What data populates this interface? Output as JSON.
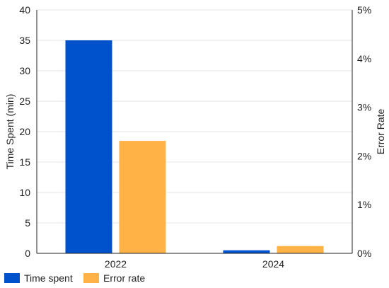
{
  "chart_data": {
    "type": "bar",
    "categories": [
      "2022",
      "2024"
    ],
    "series": [
      {
        "name": "Time spent",
        "axis": "left",
        "values": [
          35,
          0.5
        ],
        "color": "#0052cc"
      },
      {
        "name": "Error rate",
        "axis": "right",
        "values": [
          2.31,
          0.15
        ],
        "color": "#ffb347"
      }
    ],
    "ylabel": "Time Spent (min)",
    "ylim": [
      0,
      40
    ],
    "yticks": [
      "0",
      "5",
      "10",
      "15",
      "20",
      "25",
      "30",
      "35",
      "40"
    ],
    "y2label": "Error Rate",
    "y2lim": [
      0,
      5
    ],
    "y2ticks": [
      "0%",
      "1%",
      "2%",
      "3%",
      "4%",
      "5%"
    ],
    "grid": true,
    "legend_position": "bottom-left"
  }
}
